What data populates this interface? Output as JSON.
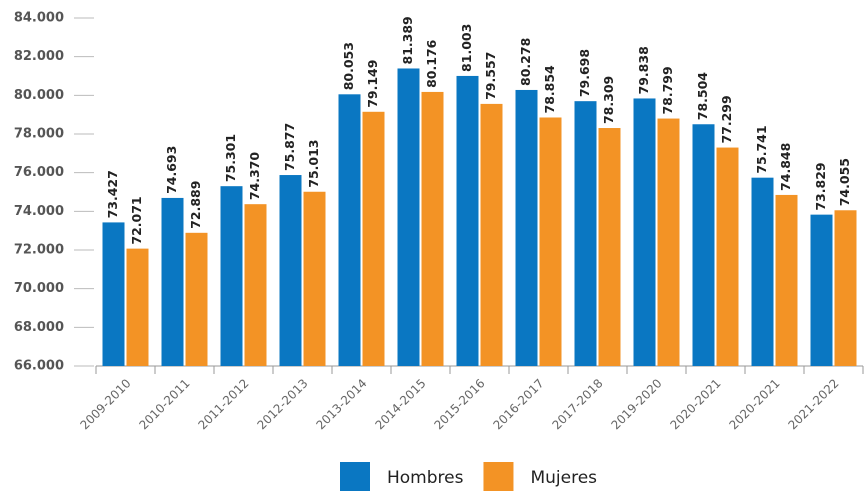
{
  "chart_data": {
    "type": "bar",
    "categories": [
      "2009-2010",
      "2010-2011",
      "2011-2012",
      "2012-2013",
      "2013-2014",
      "2014-2015",
      "2015-2016",
      "2016-2017",
      "2017-2018",
      "2019-2020",
      "2020-2021",
      "2020-2021",
      "2021-2022"
    ],
    "series": [
      {
        "name": "Hombres",
        "color": "#0a77c2",
        "values": [
          73427,
          74693,
          75301,
          75877,
          80053,
          81389,
          81003,
          80278,
          79698,
          79838,
          78504,
          75741,
          73829
        ],
        "value_labels": [
          "73.427",
          "74.693",
          "75.301",
          "75.877",
          "80.053",
          "81.389",
          "81.003",
          "80.278",
          "79.698",
          "79.838",
          "78.504",
          "75.741",
          "73.829"
        ]
      },
      {
        "name": "Mujeres",
        "color": "#f39325",
        "values": [
          72071,
          72889,
          74370,
          75013,
          79149,
          80176,
          79557,
          78854,
          78309,
          78799,
          77299,
          74848,
          74055
        ],
        "value_labels": [
          "72.071",
          "72.889",
          "74.370",
          "75.013",
          "79.149",
          "80.176",
          "79.557",
          "78.854",
          "78.309",
          "78.799",
          "77.299",
          "74.848",
          "74.055"
        ]
      }
    ],
    "ylim": [
      66000,
      84000
    ],
    "yticks": [
      {
        "value": 66000,
        "label": "66.000"
      },
      {
        "value": 68000,
        "label": "68.000"
      },
      {
        "value": 70000,
        "label": "70.000"
      },
      {
        "value": 72000,
        "label": "72.000"
      },
      {
        "value": 74000,
        "label": "74.000"
      },
      {
        "value": 76000,
        "label": "76.000"
      },
      {
        "value": 78000,
        "label": "78.000"
      },
      {
        "value": 80000,
        "label": "80.000"
      },
      {
        "value": 82000,
        "label": "82.000"
      },
      {
        "value": 84000,
        "label": "84.000"
      }
    ],
    "legend": "bottom"
  }
}
